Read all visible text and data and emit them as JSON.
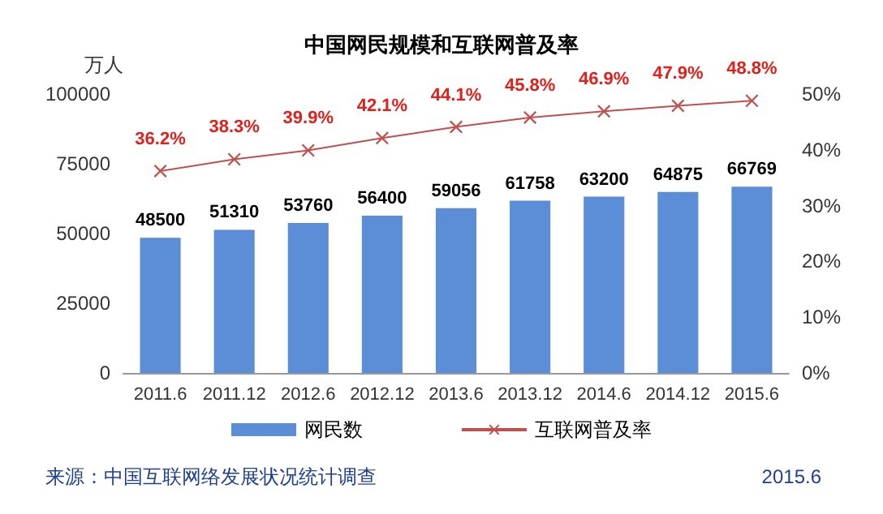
{
  "chart_data": {
    "type": "bar",
    "title": "中国网民规模和互联网普及率",
    "ylabel": "万人",
    "categories": [
      "2011.6",
      "2011.12",
      "2012.6",
      "2012.12",
      "2013.6",
      "2013.12",
      "2014.6",
      "2014.12",
      "2015.6"
    ],
    "series": [
      {
        "name": "网民数",
        "color": "#5b8ed6",
        "values": [
          48500,
          51310,
          53760,
          56400,
          59056,
          61758,
          63200,
          64875,
          66769
        ]
      },
      {
        "name": "互联网普及率",
        "type": "line",
        "axis": "y2",
        "color": "#c0504d",
        "marker": "cross",
        "values": [
          36.2,
          38.3,
          39.9,
          42.1,
          44.1,
          45.8,
          46.9,
          47.9,
          48.8
        ],
        "value_labels": [
          "36.2%",
          "38.3%",
          "39.9%",
          "42.1%",
          "44.1%",
          "45.8%",
          "46.9%",
          "47.9%",
          "48.8%"
        ]
      }
    ],
    "data_labels": true,
    "ylim": [
      0,
      100000
    ],
    "yticks": [
      0,
      25000,
      50000,
      75000,
      100000
    ],
    "y2lim": [
      0,
      50
    ],
    "y2ticks": [
      {
        "value": 0,
        "label": "0%"
      },
      {
        "value": 10,
        "label": "10%"
      },
      {
        "value": 20,
        "label": "20%"
      },
      {
        "value": 30,
        "label": "30%"
      },
      {
        "value": 40,
        "label": "40%"
      },
      {
        "value": 50,
        "label": "50%"
      }
    ],
    "grid": false,
    "legend": "bottom",
    "annotations": [
      "来源：中国互联网络发展状况统计调查",
      "2015.6"
    ]
  }
}
